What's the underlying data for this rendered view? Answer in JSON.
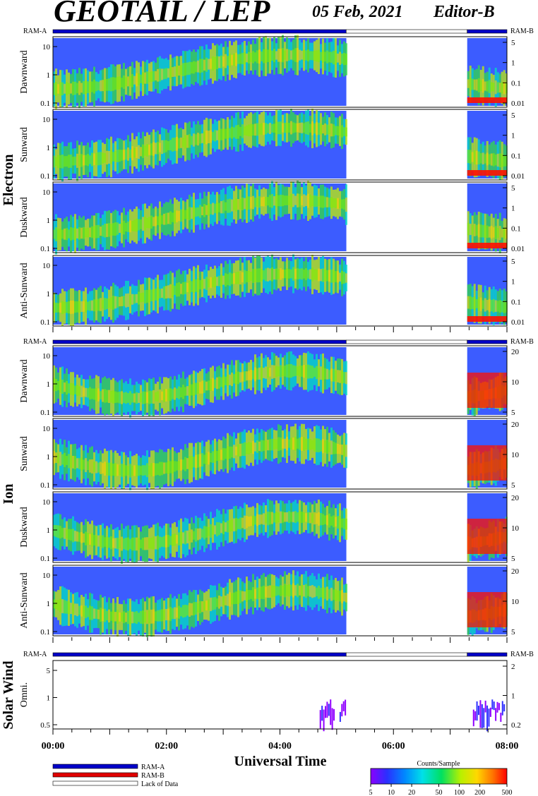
{
  "header": {
    "title": "GEOTAIL / LEP",
    "date": "05 Feb, 2021",
    "editor": "Editor-B"
  },
  "ram_labels": {
    "a": "RAM-A",
    "b": "RAM-B"
  },
  "colors": {
    "ram_a": "#0000c8",
    "ram_b": "#e00000",
    "lack": "#ffffff"
  },
  "chart_data": {
    "type": "heatmap",
    "x_unit": "UT",
    "xlim": [
      "00:00",
      "08:00"
    ],
    "x_ticks": [
      "00:00",
      "02:00",
      "04:00",
      "06:00",
      "08:00"
    ],
    "xlabel": "Universal Time",
    "data_coverage_hours": [
      [
        0.0,
        5.17
      ],
      [
        7.3,
        8.0
      ]
    ],
    "mode_intervals": [
      {
        "mode": "RAM-A",
        "start": "00:00",
        "end": "05:10"
      },
      {
        "mode": "Lack of Data",
        "start": "05:10",
        "end": "07:18"
      },
      {
        "mode": "RAM-B",
        "start": "07:18",
        "end": "08:00"
      }
    ],
    "groups": [
      {
        "name": "Electron",
        "panels": [
          {
            "label": "Dawnward",
            "left_ticks": [
              "10",
              "1",
              "0.1"
            ],
            "right_ticks": [
              "5",
              "1",
              "0.1",
              "0.01"
            ]
          },
          {
            "label": "Sunward",
            "left_ticks": [
              "10",
              "1",
              "0.1"
            ],
            "right_ticks": [
              "5",
              "1",
              "0.1",
              "0.01"
            ]
          },
          {
            "label": "Duskward",
            "left_ticks": [
              "10",
              "1",
              "0.1"
            ],
            "right_ticks": [
              "5",
              "1",
              "0.1",
              "0.01"
            ]
          },
          {
            "label": "Anti-Sunward",
            "left_ticks": [
              "10",
              "1",
              "0.1"
            ],
            "right_ticks": [
              "5",
              "1",
              "0.1",
              "0.01"
            ]
          }
        ]
      },
      {
        "name": "Ion",
        "panels": [
          {
            "label": "Dawnward",
            "left_ticks": [
              "10",
              "1",
              "0.1"
            ],
            "right_ticks": [
              "20",
              "10",
              "5"
            ]
          },
          {
            "label": "Sunward",
            "left_ticks": [
              "10",
              "1",
              "0.1"
            ],
            "right_ticks": [
              "20",
              "10",
              "5"
            ]
          },
          {
            "label": "Duskward",
            "left_ticks": [
              "10",
              "1",
              "0.1"
            ],
            "right_ticks": [
              "20",
              "10",
              "5"
            ]
          },
          {
            "label": "Anti-Sunward",
            "left_ticks": [
              "10",
              "1",
              "0.1"
            ],
            "right_ticks": [
              "20",
              "10",
              "5"
            ]
          }
        ]
      },
      {
        "name": "Solar Wind",
        "panels": [
          {
            "label": "Omni.",
            "left_ticks": [
              "5",
              "1",
              "0.5"
            ],
            "right_ticks": [
              "2",
              "1",
              "0.2"
            ]
          }
        ]
      }
    ],
    "legend": {
      "items": [
        "RAM-A",
        "RAM-B",
        "Lack of Data"
      ],
      "colorbar_title": "Counts/Sample",
      "colorbar_ticks": [
        "5",
        "10",
        "20",
        "50",
        "100",
        "200",
        "500"
      ],
      "colorbar_range": [
        5,
        500
      ],
      "colorbar_scale": "log"
    }
  }
}
